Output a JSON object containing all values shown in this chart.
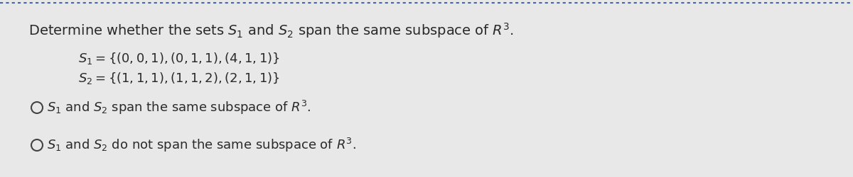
{
  "bg_color": "#e8e8e8",
  "text_color": "#2a2a2a",
  "title": "Determine whether the sets $S_1$ and $S_2$ span the same subspace of $R^3$.",
  "s1_line": "$S_1 = \\{(0, 0, 1), (0, 1, 1), (4, 1, 1)\\}$",
  "s2_line": "$S_2 = \\{(1, 1, 1), (1, 1, 2), (2, 1, 1)\\}$",
  "option1": "$S_1$ and $S_2$ span the same subspace of $R^3$.",
  "option2": "$S_1$ and $S_2$ do not span the same subspace of $R^3$.",
  "font_size_title": 14,
  "font_size_body": 13,
  "dashed_border_color": "#4466aa",
  "circle_color": "#444444"
}
